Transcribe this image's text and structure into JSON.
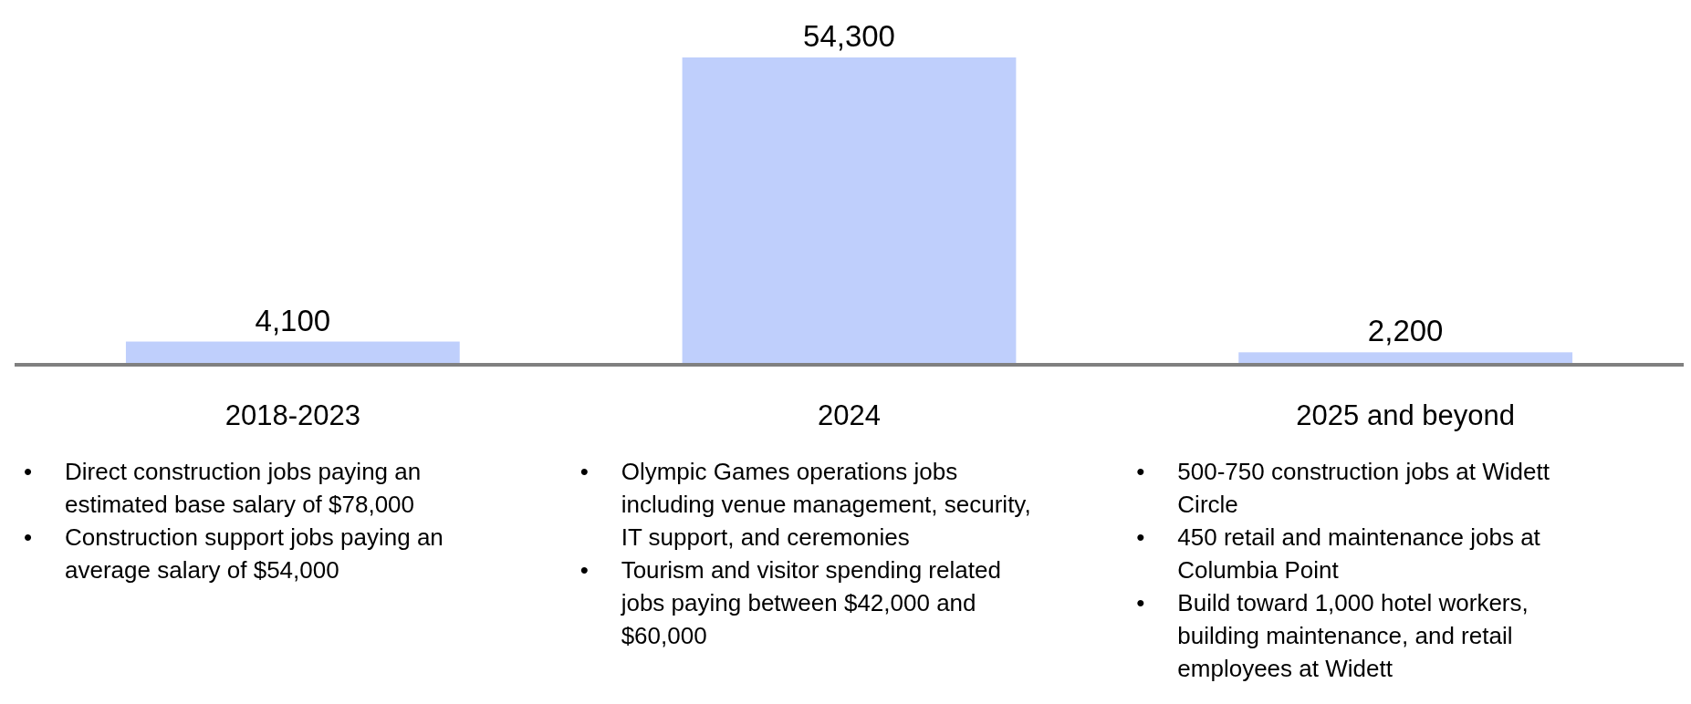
{
  "chart_data": {
    "type": "bar",
    "categories": [
      "2018-2023",
      "2024",
      "2025 and beyond"
    ],
    "values": [
      4100,
      54300,
      2200
    ],
    "value_labels": [
      "4,100",
      "54,300",
      "2,200"
    ],
    "color": "#bfcffc",
    "annotations": [
      "• Direct construction jobs paying an estimated base salary of $78,000\n• Construction support jobs paying an average salary of $54,000",
      "• Olympic Games operations jobs including venue management, security, IT support, and ceremonies\n• Tourism and visitor spending related jobs paying between $42,000 and $60,000",
      "• 500-750 construction jobs at Widett Circle\n• 450 retail and maintenance jobs at Columbia Point\n• Build toward 1,000 hotel workers, building maintenance, and retail employees at Widett"
    ]
  }
}
